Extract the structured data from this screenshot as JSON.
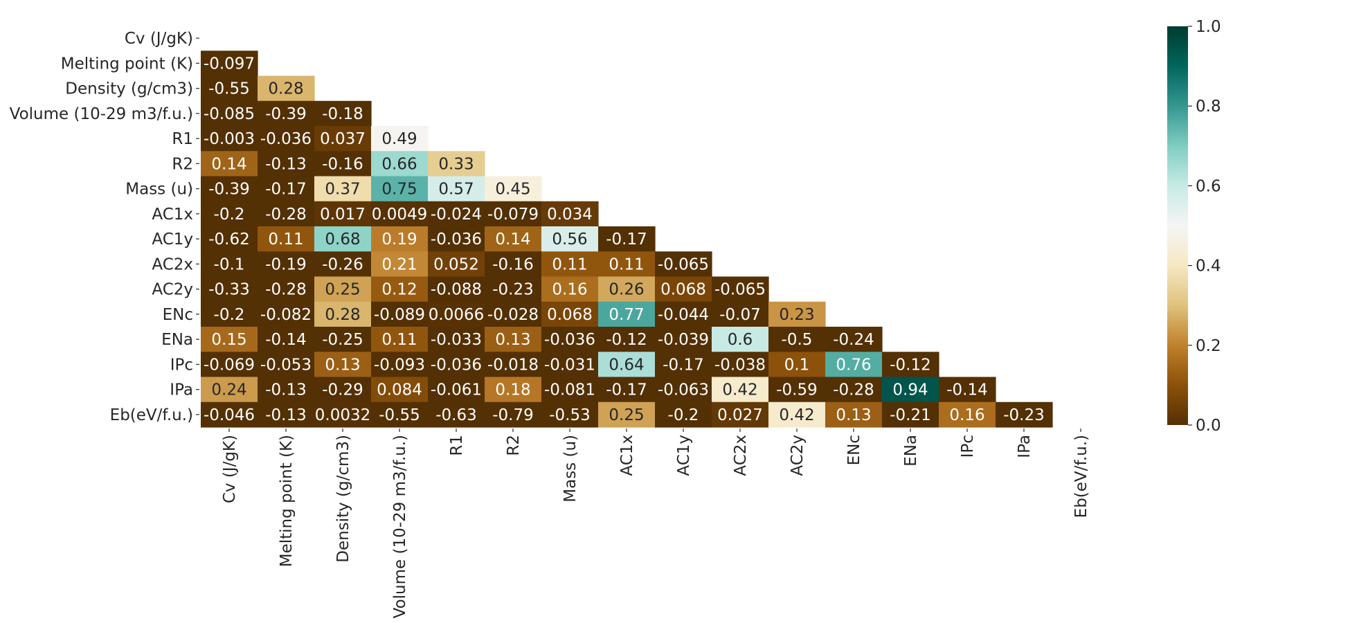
{
  "chart_data": {
    "type": "heatmap",
    "title": "",
    "xlabel": "",
    "ylabel": "",
    "mask": "upper-triangle-including-diagonal",
    "labels": [
      "Cv (J/gK)",
      "Melting point (K)",
      "Density (g/cm3)",
      "Volume (10-29 m3/f.u.)",
      "R1",
      "R2",
      "Mass (u)",
      "AC1x",
      "AC1y",
      "AC2x",
      "AC2y",
      "ENc",
      "ENa",
      "IPc",
      "IPa",
      "Eb(eV/f.u.)"
    ],
    "values": [
      [],
      [
        "-0.097"
      ],
      [
        "-0.55",
        "0.28"
      ],
      [
        "-0.085",
        "-0.39",
        "-0.18"
      ],
      [
        "-0.003",
        "-0.036",
        "0.037",
        "0.49"
      ],
      [
        "0.14",
        "-0.13",
        "-0.16",
        "0.66",
        "0.33"
      ],
      [
        "-0.39",
        "-0.17",
        "0.37",
        "0.75",
        "0.57",
        "0.45"
      ],
      [
        "-0.2",
        "-0.28",
        "0.017",
        "0.0049",
        "-0.024",
        "-0.079",
        "0.034"
      ],
      [
        "-0.62",
        "0.11",
        "0.68",
        "0.19",
        "-0.036",
        "0.14",
        "0.56",
        "-0.17"
      ],
      [
        "-0.1",
        "-0.19",
        "-0.26",
        "0.21",
        "0.052",
        "-0.16",
        "0.11",
        "0.11",
        "-0.065"
      ],
      [
        "-0.33",
        "-0.28",
        "0.25",
        "0.12",
        "-0.088",
        "-0.23",
        "0.16",
        "0.26",
        "0.068",
        "-0.065"
      ],
      [
        "-0.2",
        "-0.082",
        "0.28",
        "-0.089",
        "0.0066",
        "-0.028",
        "0.068",
        "0.77",
        "-0.044",
        "-0.07",
        "0.23"
      ],
      [
        "0.15",
        "-0.14",
        "-0.25",
        "0.11",
        "-0.033",
        "0.13",
        "-0.036",
        "-0.12",
        "-0.039",
        "0.6",
        "-0.5",
        "-0.24"
      ],
      [
        "-0.069",
        "-0.053",
        "0.13",
        "-0.093",
        "-0.036",
        "-0.018",
        "-0.031",
        "0.64",
        "-0.17",
        "-0.038",
        "0.1",
        "0.76",
        "-0.12"
      ],
      [
        "0.24",
        "-0.13",
        "-0.29",
        "0.084",
        "-0.061",
        "0.18",
        "-0.081",
        "-0.17",
        "-0.063",
        "0.42",
        "-0.59",
        "-0.28",
        "0.94",
        "-0.14"
      ],
      [
        "-0.046",
        "-0.13",
        "0.0032",
        "-0.55",
        "-0.63",
        "-0.79",
        "-0.53",
        "0.25",
        "-0.2",
        "0.027",
        "0.42",
        "0.13",
        "-0.21",
        "0.16",
        "-0.23"
      ]
    ],
    "colorbar": {
      "vmin": 0.0,
      "vmax": 1.0,
      "ticks": [
        "0.0",
        "0.2",
        "0.4",
        "0.6",
        "0.8",
        "1.0"
      ],
      "colormap": "BrBG",
      "colors": [
        "#543005",
        "#8c510a",
        "#bf812d",
        "#dfc27d",
        "#f6e8c3",
        "#f5f5f5",
        "#c7eae5",
        "#80cdc1",
        "#35978f",
        "#01665e",
        "#003c30"
      ]
    },
    "grid": false,
    "legend": "colorbar-right"
  }
}
